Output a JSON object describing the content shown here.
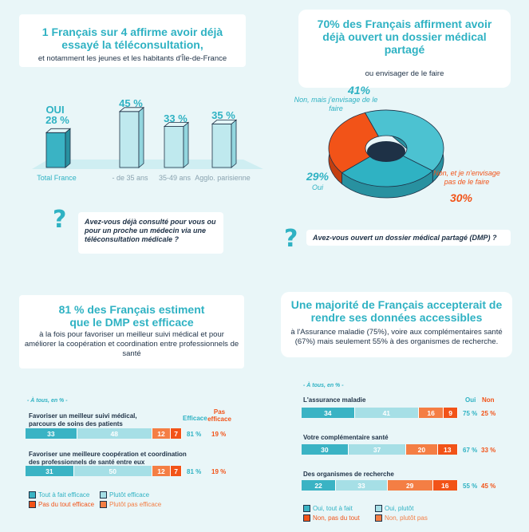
{
  "panel1": {
    "title": "1 Français sur 4 affirme avoir déjà essayé la téléconsultation,",
    "subtitle": "et notamment les jeunes et les habitants d'Île-de-France",
    "question": "Avez-vous déjà consulté pour vous ou pour un proche un médecin via une téléconsultation médicale ?",
    "oui_label": "OUI",
    "bars_chart": {
      "type": "bar",
      "categories": [
        "Total France",
        "- de 35 ans",
        "35-49 ans",
        "Agglo. parisienne"
      ],
      "values": [
        28,
        45,
        33,
        35
      ],
      "value_labels": [
        "28 %",
        "45 %",
        "33 %",
        "35 %"
      ],
      "ylim": [
        0,
        50
      ]
    }
  },
  "panel2": {
    "title": "70% des Français affirment avoir déjà ouvert un dossier médical partagé",
    "subtitle": "ou envisager de le faire",
    "question": "Avez-vous ouvert un dossier médical partagé (DMP) ?",
    "slices": [
      {
        "label": "Non, mais j'envisage de le faire",
        "value": 41,
        "pct": "41%",
        "color": "#4cc2d1"
      },
      {
        "label": "Oui",
        "value": 29,
        "pct": "29%",
        "color": "#2fb2c3"
      },
      {
        "label": "Non, et je n'envisage pas de le faire",
        "value": 30,
        "pct": "30%",
        "color": "#f25318"
      }
    ]
  },
  "panel3": {
    "title": "81 % des Français estiment que le DMP est efficace",
    "subtitle": "à la fois pour favoriser un meilleur suivi médical et pour améliorer la coopération et coordination entre professionnels de santé",
    "base_note": "- À tous, en % -",
    "col_yes": "Efficace",
    "col_no": "Pas efficace",
    "rows": [
      {
        "label": "Favoriser un meilleur suivi médical, parcours de soins des patients",
        "values": [
          33,
          48,
          12,
          7
        ],
        "yes": "81 %",
        "no": "19 %"
      },
      {
        "label": "Favoriser une meilleure coopération et coordination des professionnels de santé entre eux",
        "values": [
          31,
          50,
          12,
          7
        ],
        "yes": "81 %",
        "no": "19 %"
      }
    ],
    "legend": [
      "Tout à fait efficace",
      "Plutôt efficace",
      "Pas du tout efficace",
      "Plutôt pas efficace"
    ]
  },
  "panel4": {
    "title": "Une majorité de Français accepterait de rendre ses données accessibles",
    "subtitle": "à l'Assurance maladie (75%), voire aux complémentaires santé (67%) mais seulement 55% à des organismes de recherche.",
    "base_note": "- À tous, en % -",
    "col_yes": "Oui",
    "col_no": "Non",
    "rows": [
      {
        "label": "L'assurance maladie",
        "values": [
          34,
          41,
          16,
          9
        ],
        "yes": "75 %",
        "no": "25 %"
      },
      {
        "label": "Votre complémentaire santé",
        "values": [
          30,
          37,
          20,
          13
        ],
        "yes": "67 %",
        "no": "33 %"
      },
      {
        "label": "Des organismes de recherche",
        "values": [
          22,
          33,
          29,
          16
        ],
        "yes": "55 %",
        "no": "45 %"
      }
    ],
    "legend": [
      "Oui, tout à fait",
      "Oui, plutôt",
      "Non, pas du tout",
      "Non, plutôt pas"
    ]
  },
  "chart_data": [
    {
      "type": "bar",
      "categories": [
        "Total France",
        "- de 35 ans",
        "35-49 ans",
        "Agglo. parisienne"
      ],
      "values": [
        28,
        45,
        33,
        35
      ]
    },
    {
      "type": "pie",
      "categories": [
        "Non, mais j'envisage de le faire",
        "Oui",
        "Non, et je n'envisage pas de le faire"
      ],
      "values": [
        41,
        29,
        30
      ]
    },
    {
      "type": "bar",
      "categories": [
        "Favoriser un meilleur suivi médical, parcours de soins des patients",
        "Favoriser une meilleure coopération et coordination des professionnels de santé entre eux"
      ],
      "series": [
        {
          "name": "Tout à fait efficace",
          "values": [
            33,
            31
          ]
        },
        {
          "name": "Plutôt efficace",
          "values": [
            48,
            50
          ]
        },
        {
          "name": "Plutôt pas efficace",
          "values": [
            12,
            12
          ]
        },
        {
          "name": "Pas du tout efficace",
          "values": [
            7,
            7
          ]
        }
      ]
    },
    {
      "type": "bar",
      "categories": [
        "L'assurance maladie",
        "Votre complémentaire santé",
        "Des organismes de recherche"
      ],
      "series": [
        {
          "name": "Oui, tout à fait",
          "values": [
            34,
            30,
            22
          ]
        },
        {
          "name": "Oui, plutôt",
          "values": [
            41,
            37,
            33
          ]
        },
        {
          "name": "Non, plutôt pas",
          "values": [
            16,
            20,
            29
          ]
        },
        {
          "name": "Non, pas du tout",
          "values": [
            9,
            13,
            16
          ]
        }
      ]
    }
  ]
}
